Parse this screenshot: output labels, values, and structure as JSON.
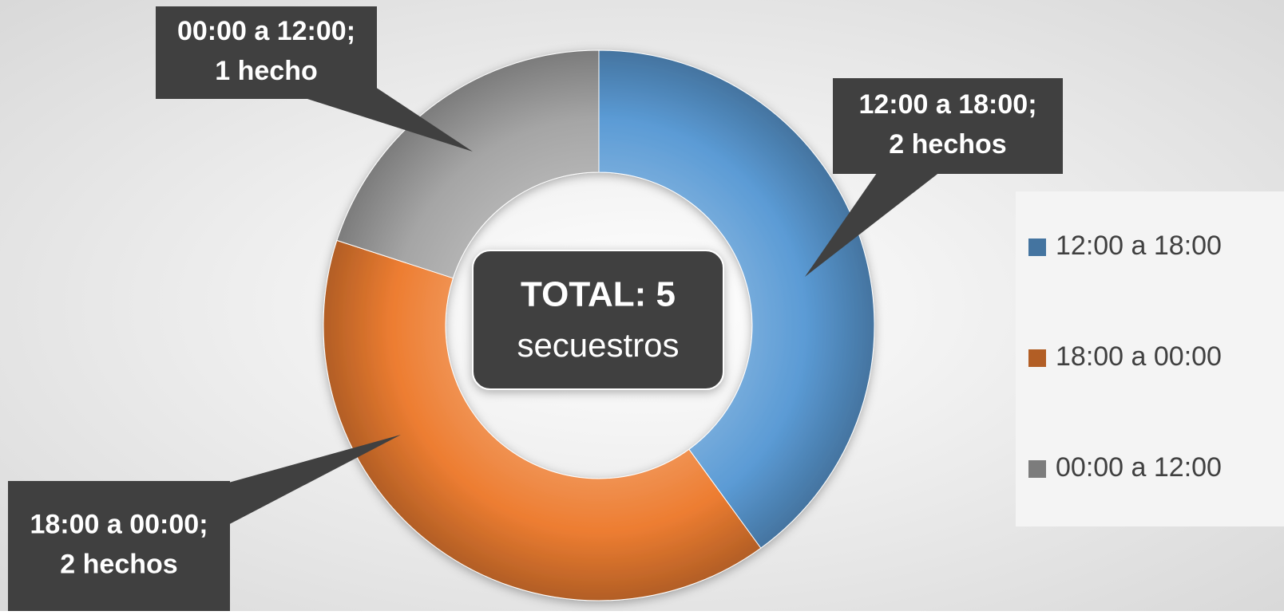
{
  "chart_data": {
    "type": "donut",
    "categories": [
      "12:00 a 18:00",
      "18:00 a 00:00",
      "00:00 a 12:00"
    ],
    "values": [
      2,
      2,
      1
    ],
    "value_labels": [
      "12:00 a 18:00; 2 hechos",
      "18:00 a 00:00; 2 hechos",
      "00:00 a 12:00; 1 hecho"
    ],
    "colors": [
      "#5b9bd5",
      "#ed7d31",
      "#a5a5a5"
    ],
    "center_label": {
      "title": "TOTAL: 5",
      "subtitle": "secuestros"
    },
    "legend": "right"
  }
}
